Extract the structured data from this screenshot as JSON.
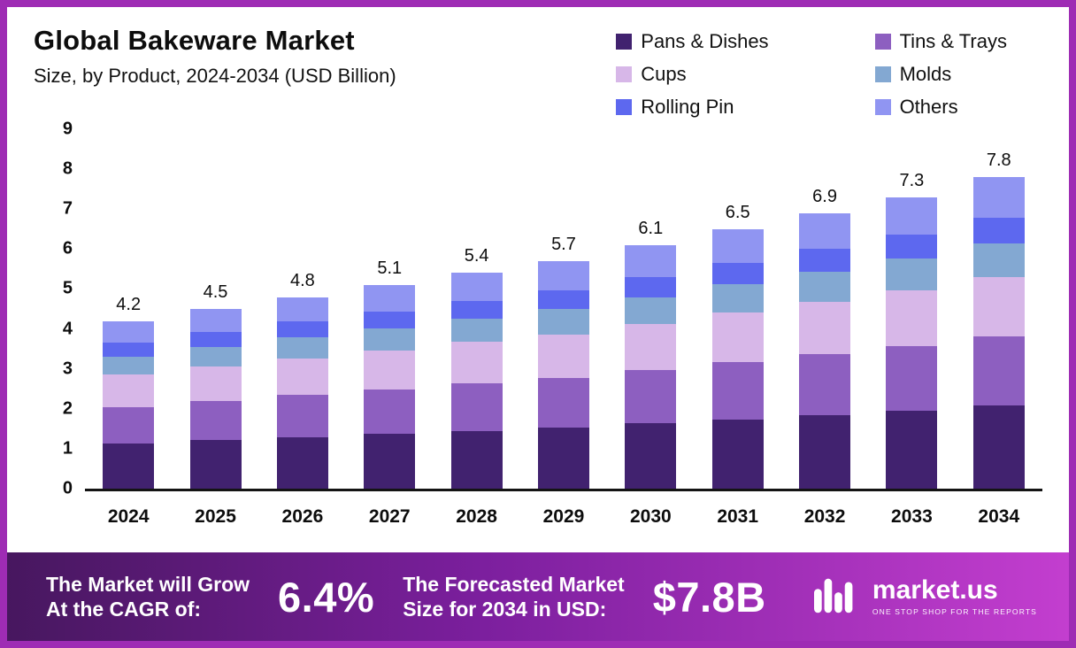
{
  "header": {
    "title": "Global Bakeware Market",
    "subtitle": "Size, by Product, 2024-2034 (USD Billion)"
  },
  "chart_data": {
    "type": "bar",
    "stacked": true,
    "title": "Global Bakeware Market Size, by Product, 2024-2034 (USD Billion)",
    "categories": [
      "2024",
      "2025",
      "2026",
      "2027",
      "2028",
      "2029",
      "2030",
      "2031",
      "2032",
      "2033",
      "2034"
    ],
    "series": [
      {
        "name": "Pans & Dishes",
        "color": "#41226f",
        "values": [
          1.13,
          1.21,
          1.29,
          1.37,
          1.45,
          1.53,
          1.63,
          1.74,
          1.85,
          1.96,
          2.09
        ]
      },
      {
        "name": "Tins & Trays",
        "color": "#8d5fc0",
        "values": [
          0.92,
          0.99,
          1.06,
          1.12,
          1.19,
          1.25,
          1.34,
          1.43,
          1.52,
          1.61,
          1.72
        ]
      },
      {
        "name": "Cups",
        "color": "#d7b7e8",
        "values": [
          0.8,
          0.85,
          0.91,
          0.97,
          1.03,
          1.08,
          1.16,
          1.24,
          1.31,
          1.39,
          1.48
        ]
      },
      {
        "name": "Molds",
        "color": "#83a8d2",
        "values": [
          0.46,
          0.5,
          0.53,
          0.56,
          0.59,
          0.63,
          0.67,
          0.72,
          0.76,
          0.8,
          0.86
        ]
      },
      {
        "name": "Rolling Pin",
        "color": "#5d68ef",
        "values": [
          0.34,
          0.37,
          0.39,
          0.42,
          0.44,
          0.47,
          0.5,
          0.53,
          0.57,
          0.6,
          0.64
        ]
      },
      {
        "name": "Others",
        "color": "#9095f2",
        "values": [
          0.55,
          0.58,
          0.62,
          0.66,
          0.7,
          0.74,
          0.8,
          0.84,
          0.89,
          0.94,
          1.01
        ]
      }
    ],
    "totals": [
      4.2,
      4.5,
      4.8,
      5.1,
      5.4,
      5.7,
      6.1,
      6.5,
      6.9,
      7.3,
      7.8
    ],
    "ylim": [
      0,
      9
    ],
    "yticks": [
      0,
      1,
      2,
      3,
      4,
      5,
      6,
      7,
      8,
      9
    ],
    "grid": false,
    "legend_position": "top-right"
  },
  "footer": {
    "cagr_label_line1": "The Market will Grow",
    "cagr_label_line2": "At the CAGR of:",
    "cagr_value": "6.4%",
    "forecast_label_line1": "The Forecasted Market",
    "forecast_label_line2": "Size for 2034 in USD:",
    "forecast_value": "$7.8B",
    "brand_name": "market.us",
    "brand_tagline": "ONE STOP SHOP FOR THE REPORTS"
  },
  "colors": {
    "frame_border": "#9e2cb4",
    "banner_gradient_start": "#47175f",
    "banner_gradient_end": "#c33ecf",
    "axis": "#141414",
    "text": "#0d0d0d"
  }
}
